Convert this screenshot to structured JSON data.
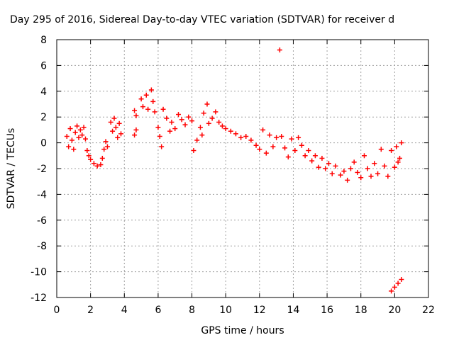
{
  "chart_data": {
    "type": "scatter",
    "title": "Day 295 of 2016, Sidereal Day-to-day VTEC variation (SDTVAR) for receiver d",
    "xlabel": "GPS time / hours",
    "ylabel": "SDTVAR / TECUs",
    "xlim": [
      0,
      22
    ],
    "ylim": [
      -12,
      8
    ],
    "xticks": [
      0,
      2,
      4,
      6,
      8,
      10,
      12,
      14,
      16,
      18,
      20,
      22
    ],
    "yticks": [
      -12,
      -10,
      -8,
      -6,
      -4,
      -2,
      0,
      2,
      4,
      6,
      8
    ],
    "grid": true,
    "marker": "+",
    "color": "#ff0000",
    "series": [
      {
        "name": "SDTVAR",
        "points": [
          [
            0.6,
            0.5
          ],
          [
            0.7,
            -0.3
          ],
          [
            0.8,
            1.1
          ],
          [
            0.9,
            0.2
          ],
          [
            1.0,
            -0.5
          ],
          [
            1.1,
            0.8
          ],
          [
            1.2,
            1.3
          ],
          [
            1.3,
            0.4
          ],
          [
            1.4,
            1.0
          ],
          [
            1.5,
            0.6
          ],
          [
            1.6,
            1.2
          ],
          [
            1.7,
            0.3
          ],
          [
            1.8,
            -0.6
          ],
          [
            1.9,
            -1.0
          ],
          [
            2.0,
            -1.3
          ],
          [
            2.2,
            -1.6
          ],
          [
            2.4,
            -1.8
          ],
          [
            2.6,
            -1.7
          ],
          [
            2.7,
            -1.2
          ],
          [
            2.8,
            -0.5
          ],
          [
            2.9,
            0.1
          ],
          [
            3.0,
            -0.3
          ],
          [
            3.2,
            1.6
          ],
          [
            3.3,
            0.9
          ],
          [
            3.4,
            1.9
          ],
          [
            3.5,
            1.2
          ],
          [
            3.6,
            0.4
          ],
          [
            3.7,
            1.5
          ],
          [
            3.8,
            0.7
          ],
          [
            4.6,
            0.6
          ],
          [
            4.6,
            2.5
          ],
          [
            4.7,
            1.0
          ],
          [
            4.7,
            2.1
          ],
          [
            5.0,
            3.4
          ],
          [
            5.1,
            2.8
          ],
          [
            5.3,
            3.7
          ],
          [
            5.4,
            2.6
          ],
          [
            5.6,
            4.1
          ],
          [
            5.7,
            3.2
          ],
          [
            5.8,
            2.4
          ],
          [
            6.0,
            1.2
          ],
          [
            6.1,
            0.5
          ],
          [
            6.2,
            -0.3
          ],
          [
            6.3,
            2.6
          ],
          [
            6.5,
            1.9
          ],
          [
            6.7,
            0.9
          ],
          [
            6.8,
            1.6
          ],
          [
            7.0,
            1.1
          ],
          [
            7.2,
            2.2
          ],
          [
            7.4,
            1.8
          ],
          [
            7.6,
            1.4
          ],
          [
            7.8,
            2.0
          ],
          [
            8.0,
            1.7
          ],
          [
            8.1,
            -0.6
          ],
          [
            8.3,
            0.2
          ],
          [
            8.5,
            1.2
          ],
          [
            8.6,
            0.6
          ],
          [
            8.7,
            2.3
          ],
          [
            8.9,
            3.0
          ],
          [
            9.0,
            1.5
          ],
          [
            9.2,
            1.9
          ],
          [
            9.4,
            2.4
          ],
          [
            9.6,
            1.6
          ],
          [
            9.8,
            1.3
          ],
          [
            10.0,
            1.1
          ],
          [
            10.3,
            0.9
          ],
          [
            10.6,
            0.7
          ],
          [
            10.9,
            0.4
          ],
          [
            11.2,
            0.5
          ],
          [
            11.5,
            0.2
          ],
          [
            11.8,
            -0.2
          ],
          [
            12.0,
            -0.5
          ],
          [
            12.2,
            1.0
          ],
          [
            12.4,
            -0.8
          ],
          [
            12.6,
            0.6
          ],
          [
            12.8,
            -0.3
          ],
          [
            13.0,
            0.4
          ],
          [
            13.2,
            7.2
          ],
          [
            13.3,
            0.5
          ],
          [
            13.5,
            -0.4
          ],
          [
            13.7,
            -1.1
          ],
          [
            13.9,
            0.3
          ],
          [
            14.1,
            -0.6
          ],
          [
            14.3,
            0.4
          ],
          [
            14.5,
            -0.2
          ],
          [
            14.7,
            -1.0
          ],
          [
            14.9,
            -0.6
          ],
          [
            15.1,
            -1.4
          ],
          [
            15.3,
            -1.0
          ],
          [
            15.5,
            -1.9
          ],
          [
            15.7,
            -1.2
          ],
          [
            15.9,
            -2.0
          ],
          [
            16.1,
            -1.6
          ],
          [
            16.3,
            -2.4
          ],
          [
            16.5,
            -1.8
          ],
          [
            16.8,
            -2.5
          ],
          [
            17.0,
            -2.2
          ],
          [
            17.2,
            -2.9
          ],
          [
            17.4,
            -2.0
          ],
          [
            17.6,
            -1.5
          ],
          [
            17.8,
            -2.3
          ],
          [
            18.0,
            -2.7
          ],
          [
            18.2,
            -1.0
          ],
          [
            18.4,
            -2.0
          ],
          [
            18.6,
            -2.6
          ],
          [
            18.8,
            -1.6
          ],
          [
            19.0,
            -2.4
          ],
          [
            19.2,
            -0.5
          ],
          [
            19.4,
            -1.8
          ],
          [
            19.6,
            -2.6
          ],
          [
            19.8,
            -0.6
          ],
          [
            20.0,
            -1.9
          ],
          [
            20.1,
            -0.3
          ],
          [
            20.2,
            -1.5
          ],
          [
            20.3,
            -1.2
          ],
          [
            20.4,
            0.0
          ],
          [
            19.8,
            -11.5
          ],
          [
            20.0,
            -11.2
          ],
          [
            20.2,
            -10.9
          ],
          [
            20.4,
            -10.6
          ]
        ]
      }
    ]
  }
}
